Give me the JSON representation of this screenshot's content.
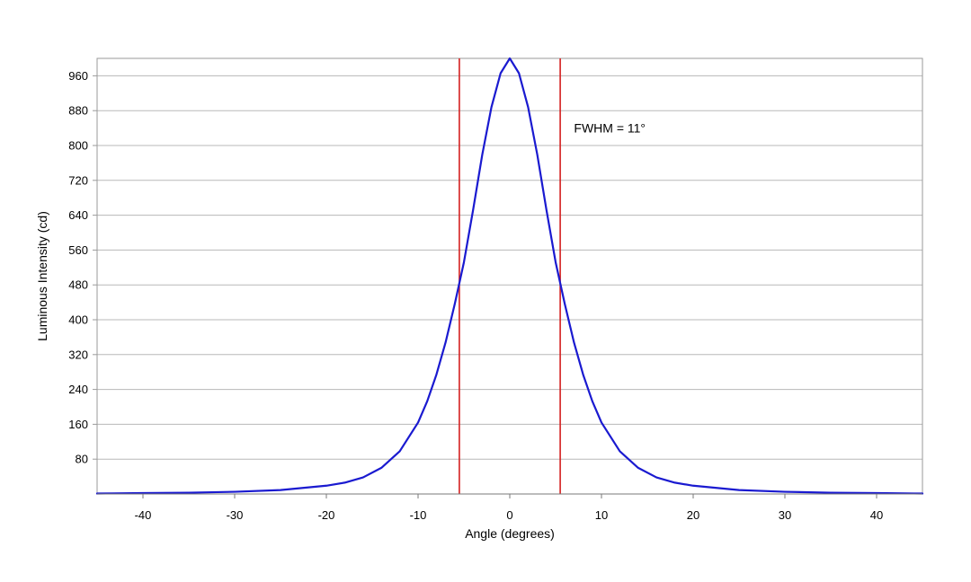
{
  "chart_data": {
    "type": "line",
    "title": "",
    "xlabel": "Angle (degrees)",
    "ylabel": "Luminous Intensity (cd)",
    "xlim": [
      -45,
      45
    ],
    "ylim": [
      0,
      1000
    ],
    "x_ticks": [
      -40,
      -30,
      -20,
      -10,
      0,
      10,
      20,
      30,
      40
    ],
    "y_ticks": [
      80,
      160,
      240,
      320,
      400,
      480,
      560,
      640,
      720,
      800,
      880,
      960
    ],
    "x_tick_labels": [
      "-40",
      "-30",
      "-20",
      "-10",
      "0",
      "10",
      "20",
      "30",
      "40"
    ],
    "y_tick_labels": [
      "80",
      "160",
      "240",
      "320",
      "400",
      "480",
      "560",
      "640",
      "720",
      "800",
      "880",
      "960"
    ],
    "grid": "horizontal",
    "series": [
      {
        "color": "#1a1ad0",
        "x": [
          -45,
          -40,
          -35,
          -30,
          -25,
          -20,
          -18,
          -16,
          -14,
          -12,
          -10,
          -9,
          -8,
          -7,
          -6,
          -5.5,
          -5,
          -4,
          -3,
          -2,
          -1,
          0,
          1,
          2,
          3,
          4,
          5,
          5.5,
          6,
          7,
          8,
          9,
          10,
          12,
          14,
          16,
          18,
          20,
          25,
          30,
          35,
          40,
          45
        ],
        "y": [
          1,
          2,
          3,
          5,
          9,
          19,
          26,
          38,
          60,
          98,
          164,
          213,
          274,
          348,
          436,
          484,
          532,
          652,
          779,
          888,
          966,
          1000,
          966,
          888,
          779,
          652,
          532,
          484,
          436,
          348,
          274,
          213,
          164,
          98,
          60,
          38,
          26,
          19,
          9,
          5,
          3,
          2,
          1
        ]
      }
    ],
    "reference_lines": [
      {
        "x": -5.5,
        "color": "#d42020"
      },
      {
        "x": 5.5,
        "color": "#d42020"
      }
    ],
    "annotations": [
      {
        "text": "FWHM = 11°",
        "x": 7,
        "y": 830
      }
    ]
  }
}
